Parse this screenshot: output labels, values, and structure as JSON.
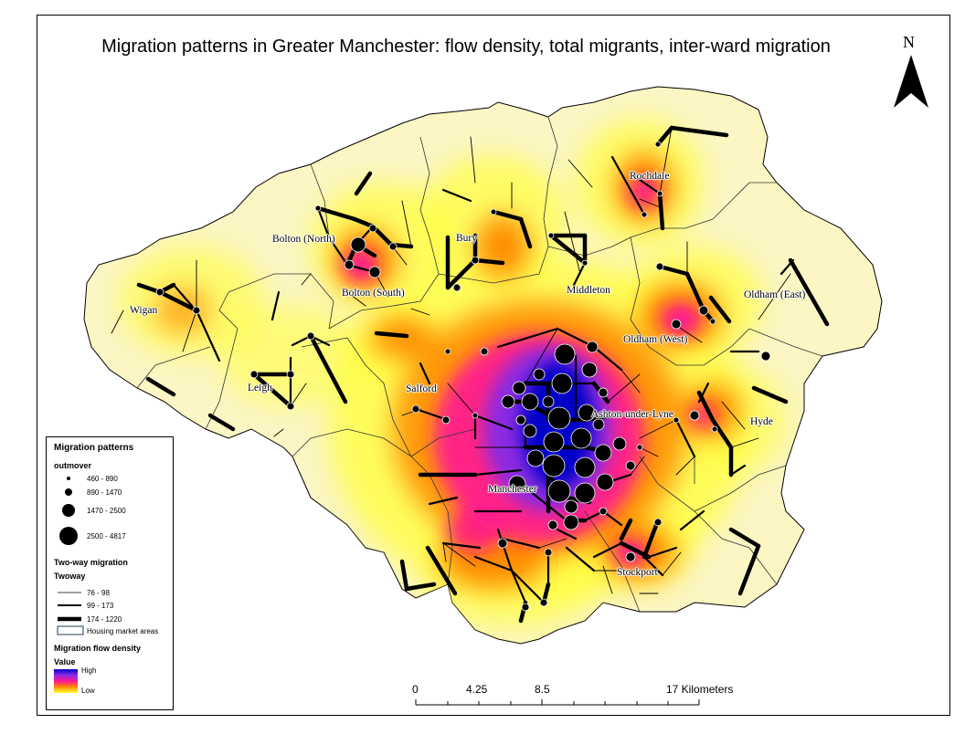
{
  "title": "Migration patterns in Greater Manchester: flow density, total migrants, inter-ward migration",
  "north_arrow": {
    "letter": "N"
  },
  "places": {
    "rochdale": "Rochdale",
    "bolton_north": "Bolton (North)",
    "bury": "Bury",
    "bolton_south": "Bolton (South)",
    "middleton": "Middleton",
    "oldham_east": "Oldham (East)",
    "wigan": "Wigan",
    "oldham_west": "Oldham (West)",
    "leigh": "Leigh",
    "salford": "Salford",
    "ashton": "Ashton-under-Lyne",
    "hyde": "Hyde",
    "manchester": "Manchester",
    "stockport": "Stockport"
  },
  "legend": {
    "title": "Migration patterns",
    "outmover": {
      "label": "outmover",
      "classes": [
        "460 - 890",
        "890 - 1470",
        "1470 - 2500",
        "2500 - 4817"
      ]
    },
    "two_way": {
      "label": "Two-way migration",
      "field": "Twoway",
      "classes": [
        "76 - 98",
        "99 - 173",
        "174 - 1220"
      ]
    },
    "housing_label": "Housing market areas",
    "density": {
      "label": "Migration flow density",
      "field": "Value",
      "high": "High",
      "low": "Low"
    }
  },
  "scale_bar": {
    "labels": [
      "0",
      "4.25",
      "8.5",
      "17 Kilometers"
    ],
    "unit": "Kilometers"
  },
  "colors": {
    "outline_fill": "#fbf6c4",
    "density_low": "#ffff33",
    "density_mid": "#ff8c00",
    "density_high1": "#ff1493",
    "density_high2": "#8a2be2",
    "density_peak": "#0000c8"
  }
}
